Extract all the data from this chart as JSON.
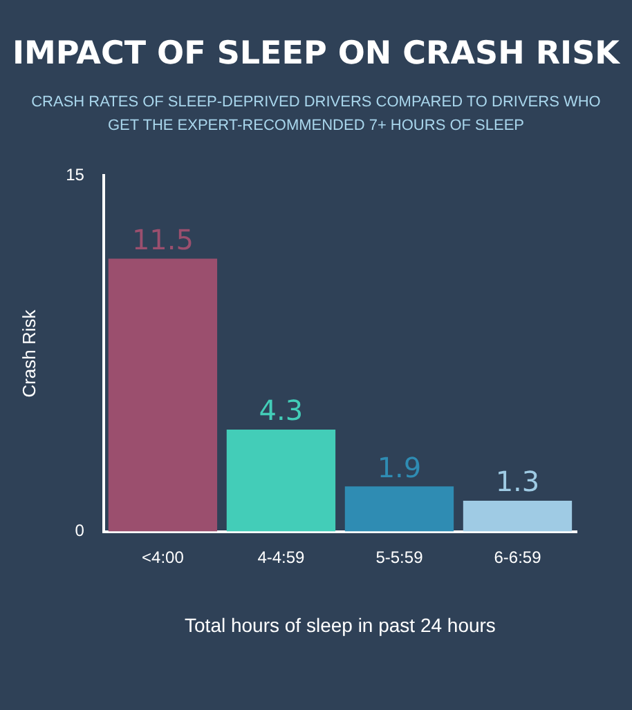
{
  "chart_data": {
    "type": "bar",
    "title": "IMPACT OF SLEEP ON CRASH RISK",
    "subtitle": "CRASH RATES OF SLEEP-DEPRIVED DRIVERS COMPARED TO DRIVERS WHO GET THE EXPERT-RECOMMENDED 7+ HOURS OF SLEEP",
    "categories": [
      "<4:00",
      "4-4:59",
      "5-5:59",
      "6-6:59"
    ],
    "values": [
      11.5,
      4.3,
      1.9,
      1.3
    ],
    "colors": [
      "#9b4f6e",
      "#43cdb8",
      "#2f8cb3",
      "#9fcbe4"
    ],
    "ylim": [
      0,
      15
    ],
    "yticks": [
      0,
      15
    ],
    "grid": false,
    "data_labels": true,
    "xlabel": "Total hours of sleep in past 24 hours",
    "ylabel": "Crash Risk"
  }
}
